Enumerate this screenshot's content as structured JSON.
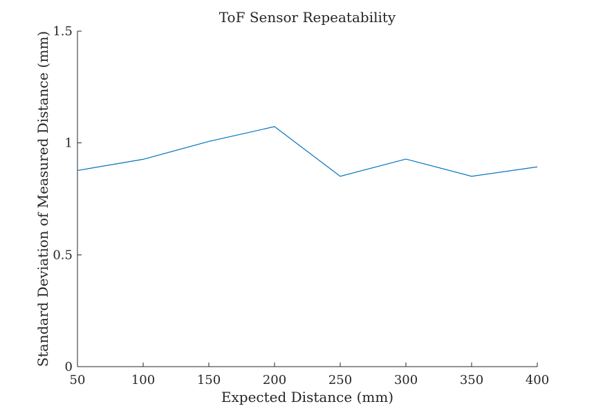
{
  "chart_data": {
    "type": "line",
    "title": "ToF Sensor Repeatability",
    "xlabel": "Expected Distance (mm)",
    "ylabel": "Standard Deviation of Measured Distance (mm)",
    "xlim": [
      50,
      400
    ],
    "ylim": [
      0,
      1.5
    ],
    "xticks": [
      50,
      100,
      150,
      200,
      250,
      300,
      350,
      400
    ],
    "xtick_labels": [
      "50",
      "100",
      "150",
      "200",
      "250",
      "300",
      "350",
      "400"
    ],
    "yticks": [
      0,
      0.5,
      1,
      1.5
    ],
    "ytick_labels": [
      "0",
      "0.5",
      "1",
      "1.5"
    ],
    "grid": false,
    "series": [
      {
        "color": "#0072BD",
        "x": [
          50,
          100,
          150,
          200,
          250,
          300,
          350,
          400
        ],
        "y": [
          0.877,
          0.927,
          1.007,
          1.073,
          0.851,
          0.928,
          0.851,
          0.893
        ]
      }
    ]
  }
}
